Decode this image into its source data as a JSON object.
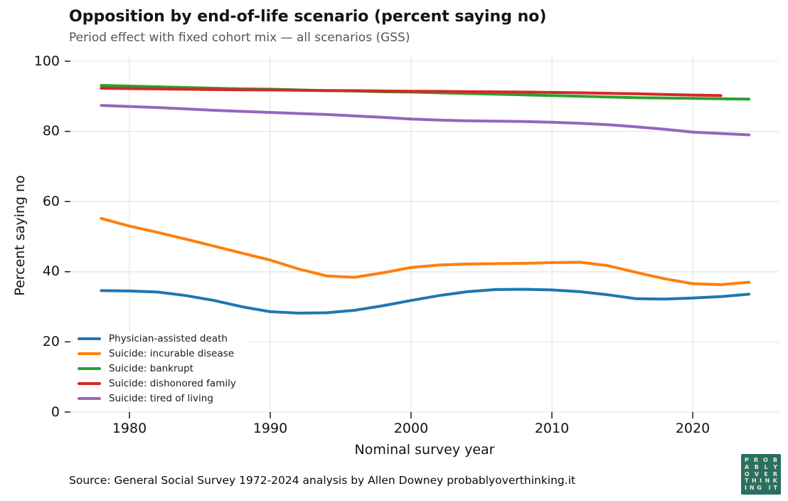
{
  "chart_data": {
    "type": "line",
    "title": "Opposition by end-of-life scenario (percent saying no)",
    "subtitle": "Period effect with fixed cohort mix — all scenarios (GSS)",
    "xlabel": "Nominal survey year",
    "ylabel": "Percent saying no",
    "xlim": [
      1976,
      2026
    ],
    "ylim": [
      0,
      101.5
    ],
    "xticks": [
      1980,
      1990,
      2000,
      2010,
      2020
    ],
    "yticks": [
      0,
      20,
      40,
      60,
      80,
      100
    ],
    "grid": true,
    "grid_color": "#e6e6e6",
    "tick_color": "#262626",
    "legend_position": "lower-left-inside",
    "series": [
      {
        "name": "Physician-assisted death",
        "color": "#1f77b4",
        "points": [
          [
            1978,
            34.6
          ],
          [
            1980,
            34.5
          ],
          [
            1982,
            34.2
          ],
          [
            1984,
            33.2
          ],
          [
            1986,
            31.8
          ],
          [
            1988,
            30.0
          ],
          [
            1990,
            28.6
          ],
          [
            1992,
            28.2
          ],
          [
            1994,
            28.3
          ],
          [
            1996,
            29.0
          ],
          [
            1998,
            30.3
          ],
          [
            2000,
            31.8
          ],
          [
            2002,
            33.2
          ],
          [
            2004,
            34.3
          ],
          [
            2006,
            34.9
          ],
          [
            2008,
            35.0
          ],
          [
            2010,
            34.8
          ],
          [
            2012,
            34.3
          ],
          [
            2014,
            33.4
          ],
          [
            2016,
            32.3
          ],
          [
            2018,
            32.2
          ],
          [
            2020,
            32.5
          ],
          [
            2022,
            32.9
          ],
          [
            2024,
            33.6
          ]
        ]
      },
      {
        "name": "Suicide: incurable disease",
        "color": "#ff7f0e",
        "points": [
          [
            1978,
            55.2
          ],
          [
            1980,
            53.0
          ],
          [
            1982,
            51.2
          ],
          [
            1984,
            49.3
          ],
          [
            1986,
            47.3
          ],
          [
            1988,
            45.3
          ],
          [
            1990,
            43.3
          ],
          [
            1992,
            40.8
          ],
          [
            1994,
            38.8
          ],
          [
            1996,
            38.4
          ],
          [
            1998,
            39.7
          ],
          [
            2000,
            41.2
          ],
          [
            2002,
            41.9
          ],
          [
            2004,
            42.2
          ],
          [
            2006,
            42.3
          ],
          [
            2008,
            42.4
          ],
          [
            2010,
            42.6
          ],
          [
            2012,
            42.7
          ],
          [
            2014,
            41.7
          ],
          [
            2016,
            39.8
          ],
          [
            2018,
            38.0
          ],
          [
            2020,
            36.6
          ],
          [
            2022,
            36.3
          ],
          [
            2024,
            37.0
          ]
        ]
      },
      {
        "name": "Suicide: bankrupt",
        "color": "#2ca02c",
        "points": [
          [
            1978,
            93.1
          ],
          [
            1980,
            92.9
          ],
          [
            1982,
            92.7
          ],
          [
            1984,
            92.5
          ],
          [
            1986,
            92.3
          ],
          [
            1988,
            92.1
          ],
          [
            1990,
            92.0
          ],
          [
            1992,
            91.8
          ],
          [
            1994,
            91.6
          ],
          [
            1996,
            91.5
          ],
          [
            1998,
            91.3
          ],
          [
            2000,
            91.2
          ],
          [
            2002,
            91.0
          ],
          [
            2004,
            90.8
          ],
          [
            2006,
            90.6
          ],
          [
            2008,
            90.4
          ],
          [
            2010,
            90.2
          ],
          [
            2012,
            90.0
          ],
          [
            2014,
            89.8
          ],
          [
            2016,
            89.6
          ],
          [
            2018,
            89.5
          ],
          [
            2020,
            89.4
          ],
          [
            2022,
            89.3
          ],
          [
            2024,
            89.2
          ]
        ]
      },
      {
        "name": "Suicide: dishonored family",
        "color": "#d62728",
        "points": [
          [
            1978,
            92.3
          ],
          [
            1980,
            92.2
          ],
          [
            1982,
            92.1
          ],
          [
            1984,
            92.0
          ],
          [
            1986,
            91.9
          ],
          [
            1988,
            91.85
          ],
          [
            1990,
            91.8
          ],
          [
            1992,
            91.7
          ],
          [
            1994,
            91.65
          ],
          [
            1996,
            91.6
          ],
          [
            1998,
            91.5
          ],
          [
            2000,
            91.45
          ],
          [
            2002,
            91.4
          ],
          [
            2004,
            91.3
          ],
          [
            2006,
            91.25
          ],
          [
            2008,
            91.2
          ],
          [
            2010,
            91.1
          ],
          [
            2012,
            91.0
          ],
          [
            2014,
            90.85
          ],
          [
            2016,
            90.7
          ],
          [
            2018,
            90.5
          ],
          [
            2020,
            90.35
          ],
          [
            2022,
            90.2
          ]
        ]
      },
      {
        "name": "Suicide: tired of living",
        "color": "#9467bd",
        "points": [
          [
            1978,
            87.4
          ],
          [
            1980,
            87.1
          ],
          [
            1982,
            86.8
          ],
          [
            1984,
            86.4
          ],
          [
            1986,
            86.0
          ],
          [
            1988,
            85.7
          ],
          [
            1990,
            85.4
          ],
          [
            1992,
            85.1
          ],
          [
            1994,
            84.8
          ],
          [
            1996,
            84.4
          ],
          [
            1998,
            84.0
          ],
          [
            2000,
            83.5
          ],
          [
            2002,
            83.2
          ],
          [
            2004,
            83.0
          ],
          [
            2006,
            82.9
          ],
          [
            2008,
            82.8
          ],
          [
            2010,
            82.6
          ],
          [
            2012,
            82.3
          ],
          [
            2014,
            81.9
          ],
          [
            2016,
            81.3
          ],
          [
            2018,
            80.6
          ],
          [
            2020,
            79.8
          ],
          [
            2022,
            79.4
          ],
          [
            2024,
            79.0
          ]
        ]
      }
    ]
  },
  "source": "Source: General Social Survey 1972-2024 analysis by Allen Downey probablyoverthinking.it",
  "logo": {
    "rows": [
      "PROB",
      "ABLY",
      "OVER",
      "THINK",
      "ING IT"
    ],
    "bg_color": "#2a6f63",
    "text_color": "#f2e8c4"
  }
}
